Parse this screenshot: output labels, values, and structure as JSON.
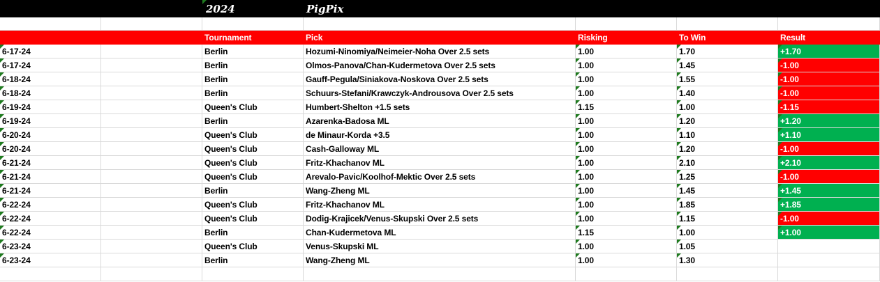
{
  "header": {
    "year": "2024",
    "title": "PigPix"
  },
  "columns": [
    "",
    "",
    "Tournament",
    "Pick",
    "Risking",
    "To Win",
    "Result"
  ],
  "colors": {
    "win": "#00b050",
    "loss": "#ff0000",
    "header": "#ff0000",
    "titlebar": "#000000"
  },
  "rows": [
    {
      "date": "6-17-24",
      "tournament": "Berlin",
      "pick": "Hozumi-Ninomiya/Neimeier-Noha Over 2.5 sets",
      "risking": "1.00",
      "to_win": "1.70",
      "result": "+1.70"
    },
    {
      "date": "6-17-24",
      "tournament": "Berlin",
      "pick": "Olmos-Panova/Chan-Kudermetova Over 2.5 sets",
      "risking": "1.00",
      "to_win": "1.45",
      "result": "-1.00"
    },
    {
      "date": "6-18-24",
      "tournament": "Berlin",
      "pick": "Gauff-Pegula/Siniakova-Noskova Over 2.5 sets",
      "risking": "1.00",
      "to_win": "1.55",
      "result": "-1.00"
    },
    {
      "date": "6-18-24",
      "tournament": "Berlin",
      "pick": "Schuurs-Stefani/Krawczyk-Androusova Over 2.5 sets",
      "risking": "1.00",
      "to_win": "1.40",
      "result": "-1.00"
    },
    {
      "date": "6-19-24",
      "tournament": "Queen's Club",
      "pick": "Humbert-Shelton +1.5 sets",
      "risking": "1.15",
      "to_win": "1.00",
      "result": "-1.15"
    },
    {
      "date": "6-19-24",
      "tournament": "Berlin",
      "pick": "Azarenka-Badosa ML",
      "risking": "1.00",
      "to_win": "1.20",
      "result": "+1.20"
    },
    {
      "date": "6-20-24",
      "tournament": "Queen's Club",
      "pick": "de Minaur-Korda +3.5",
      "risking": "1.00",
      "to_win": "1.10",
      "result": "+1.10"
    },
    {
      "date": "6-20-24",
      "tournament": "Queen's Club",
      "pick": "Cash-Galloway ML",
      "risking": "1.00",
      "to_win": "1.20",
      "result": "-1.00"
    },
    {
      "date": "6-21-24",
      "tournament": "Queen's Club",
      "pick": "Fritz-Khachanov ML",
      "risking": "1.00",
      "to_win": "2.10",
      "result": "+2.10"
    },
    {
      "date": "6-21-24",
      "tournament": "Queen's Club",
      "pick": "Arevalo-Pavic/Koolhof-Mektic Over 2.5 sets",
      "risking": "1.00",
      "to_win": "1.25",
      "result": "-1.00"
    },
    {
      "date": "6-21-24",
      "tournament": "Berlin",
      "pick": "Wang-Zheng ML",
      "risking": "1.00",
      "to_win": "1.45",
      "result": "+1.45"
    },
    {
      "date": "6-22-24",
      "tournament": "Queen's Club",
      "pick": "Fritz-Khachanov ML",
      "risking": "1.00",
      "to_win": "1.85",
      "result": "+1.85"
    },
    {
      "date": "6-22-24",
      "tournament": "Queen's Club",
      "pick": "Dodig-Krajicek/Venus-Skupski Over 2.5 sets",
      "risking": "1.00",
      "to_win": "1.15",
      "result": "-1.00"
    },
    {
      "date": "6-22-24",
      "tournament": "Berlin",
      "pick": "Chan-Kudermetova ML",
      "risking": "1.15",
      "to_win": "1.00",
      "result": "+1.00"
    },
    {
      "date": "6-23-24",
      "tournament": "Queen's Club",
      "pick": "Venus-Skupski ML",
      "risking": "1.00",
      "to_win": "1.05",
      "result": ""
    },
    {
      "date": "6-23-24",
      "tournament": "Berlin",
      "pick": "Wang-Zheng ML",
      "risking": "1.00",
      "to_win": "1.30",
      "result": ""
    }
  ]
}
